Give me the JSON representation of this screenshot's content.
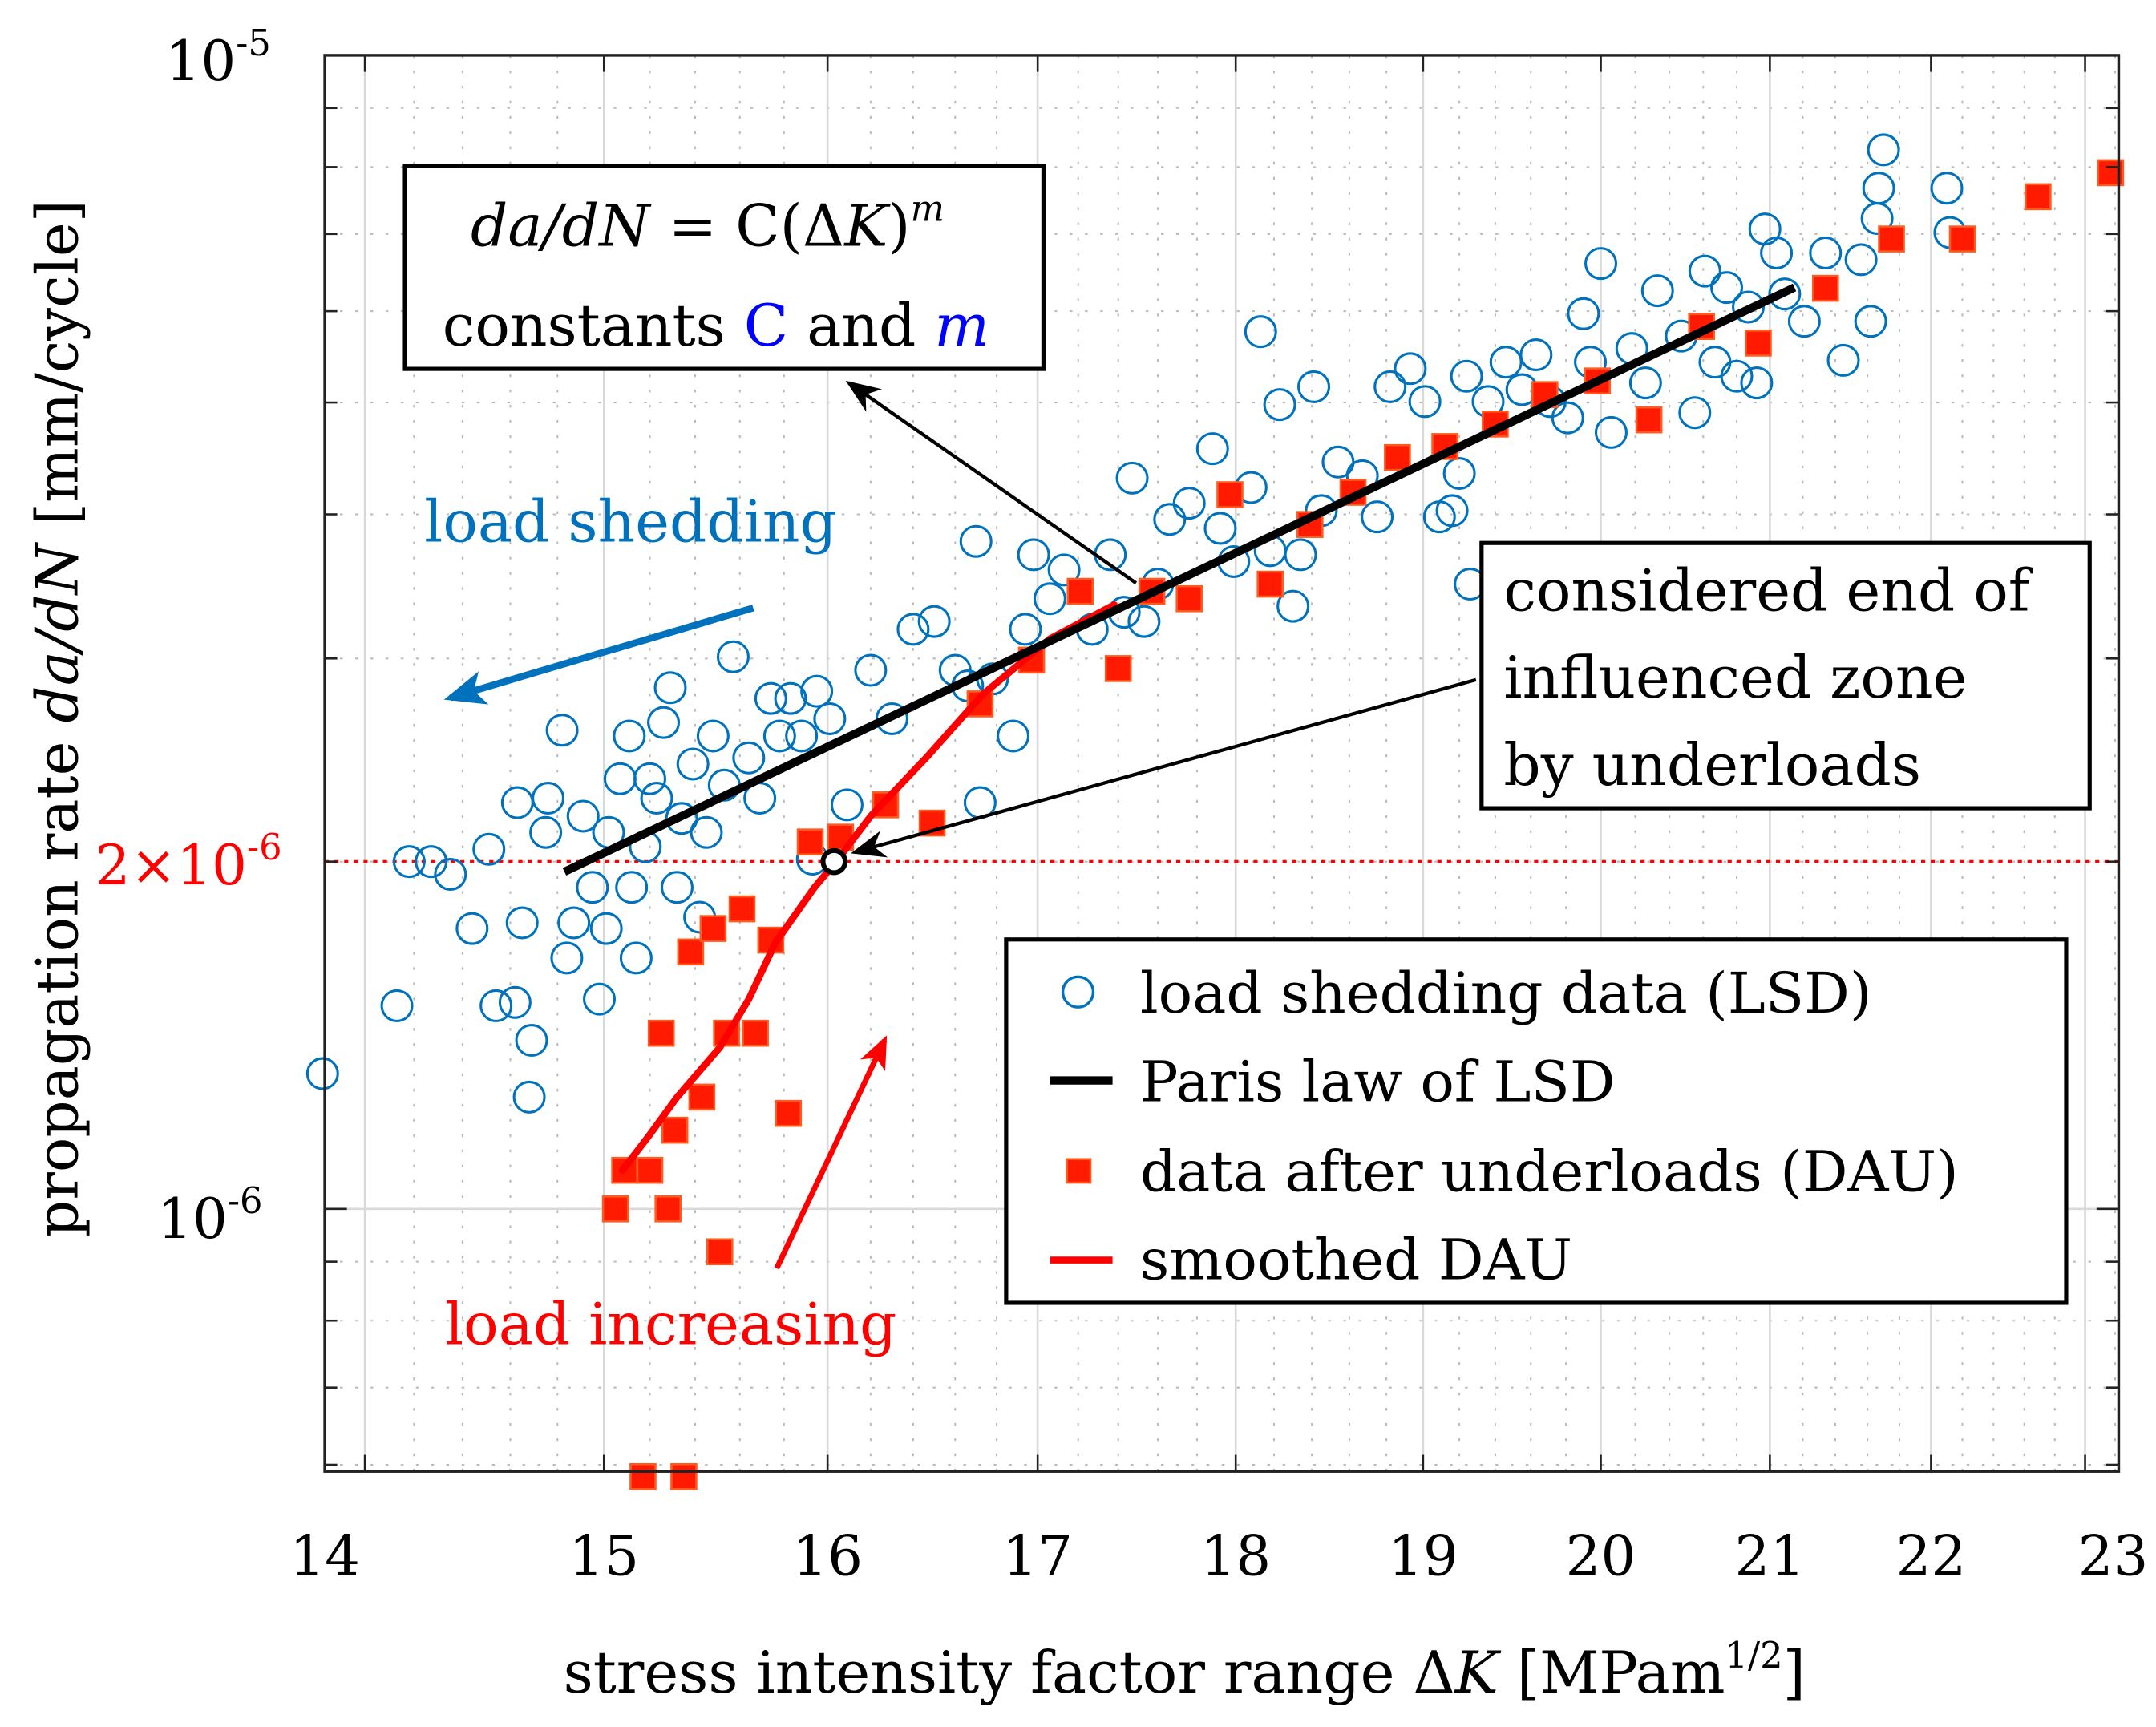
{
  "chart_data": {
    "type": "scatter",
    "xscale": "log",
    "yscale": "log",
    "xlim": [
      13.83,
      23.29
    ],
    "ylim": [
      5.84e-07,
      1e-05
    ],
    "xlabel": {
      "text": "stress intensity factor range Δ",
      "var": "K",
      "unit": " [MPam",
      "unit_exp": "1/2",
      "close": "]"
    },
    "ylabel": {
      "text": "propagation rate ",
      "var": "da/dN",
      "unit": " [mm/cycle]"
    },
    "x_ticks": [
      14,
      15,
      16,
      17,
      18,
      19,
      20,
      21,
      22,
      23
    ],
    "x_tick_labels": [
      "14",
      "15",
      "16",
      "17",
      "18",
      "19",
      "20",
      "21",
      "22",
      "23"
    ],
    "y_ticks": [
      {
        "value": 1e-05,
        "base": "10",
        "exp": "-5"
      },
      {
        "value": 1e-06,
        "base": "10",
        "exp": "-6"
      }
    ],
    "reference_line": {
      "y": 2e-06,
      "base": "2×10",
      "exp": "-6",
      "color": "#FF0000",
      "style": "dotted"
    },
    "grid": true,
    "colors": {
      "lsd": "#0072BD",
      "paris": "#000000",
      "dau": "#FF1A00",
      "dau_edge": "#FF5A1F",
      "smoothed": "#FF0000"
    },
    "series": [
      {
        "name": "load shedding data (LSD)",
        "marker": "open-circle",
        "points": [
          [
            13.83,
            1.31e-06
          ],
          [
            14.13,
            1.5e-06
          ],
          [
            14.18,
            2e-06
          ],
          [
            14.27,
            2e-06
          ],
          [
            14.35,
            1.95e-06
          ],
          [
            14.44,
            1.75e-06
          ],
          [
            14.51,
            2.05e-06
          ],
          [
            14.54,
            1.5e-06
          ],
          [
            14.63,
            2.25e-06
          ],
          [
            14.65,
            1.77e-06
          ],
          [
            14.69,
            1.4e-06
          ],
          [
            14.75,
            2.12e-06
          ],
          [
            14.76,
            2.27e-06
          ],
          [
            14.82,
            2.6e-06
          ],
          [
            14.84,
            1.65e-06
          ],
          [
            14.68,
            1.25e-06
          ],
          [
            14.62,
            1.51e-06
          ],
          [
            14.87,
            1.77e-06
          ],
          [
            14.91,
            2.19e-06
          ],
          [
            14.95,
            1.9e-06
          ],
          [
            14.98,
            1.52e-06
          ],
          [
            15.02,
            2.12e-06
          ],
          [
            15.01,
            1.75e-06
          ],
          [
            15.07,
            2.36e-06
          ],
          [
            15.11,
            2.57e-06
          ],
          [
            15.12,
            1.9e-06
          ],
          [
            15.14,
            1.65e-06
          ],
          [
            15.18,
            2.06e-06
          ],
          [
            15.2,
            2.36e-06
          ],
          [
            15.23,
            2.27e-06
          ],
          [
            15.26,
            2.64e-06
          ],
          [
            15.29,
            2.83e-06
          ],
          [
            15.32,
            1.9e-06
          ],
          [
            15.34,
            2.18e-06
          ],
          [
            15.39,
            2.43e-06
          ],
          [
            15.42,
            1.79e-06
          ],
          [
            15.45,
            2.12e-06
          ],
          [
            15.48,
            2.57e-06
          ],
          [
            15.53,
            2.33e-06
          ],
          [
            15.57,
            3.01e-06
          ],
          [
            15.64,
            2.46e-06
          ],
          [
            15.69,
            2.27e-06
          ],
          [
            15.74,
            2.77e-06
          ],
          [
            15.78,
            2.57e-06
          ],
          [
            15.83,
            2.77e-06
          ],
          [
            15.88,
            2.57e-06
          ],
          [
            15.95,
            2.81e-06
          ],
          [
            16.01,
            2.66e-06
          ],
          [
            16.09,
            2.24e-06
          ],
          [
            15.93,
            2.01e-06
          ],
          [
            16.2,
            2.93e-06
          ],
          [
            16.3,
            2.66e-06
          ],
          [
            16.4,
            3.18e-06
          ],
          [
            16.5,
            3.23e-06
          ],
          [
            16.6,
            2.93e-06
          ],
          [
            16.66,
            2.84e-06
          ],
          [
            16.72,
            2.25e-06
          ],
          [
            16.78,
            2.88e-06
          ],
          [
            16.88,
            2.57e-06
          ],
          [
            16.94,
            3.18e-06
          ],
          [
            16.7,
            3.79e-06
          ],
          [
            16.98,
            3.69e-06
          ],
          [
            17.06,
            3.38e-06
          ],
          [
            17.13,
            3.58e-06
          ],
          [
            17.27,
            3.18e-06
          ],
          [
            17.36,
            3.69e-06
          ],
          [
            17.43,
            3.29e-06
          ],
          [
            17.47,
            4.3e-06
          ],
          [
            17.53,
            3.23e-06
          ],
          [
            17.6,
            3.48e-06
          ],
          [
            17.66,
            3.96e-06
          ],
          [
            17.76,
            4.09e-06
          ],
          [
            17.88,
            4.56e-06
          ],
          [
            17.92,
            3.89e-06
          ],
          [
            17.99,
            3.64e-06
          ],
          [
            18.08,
            4.22e-06
          ],
          [
            18.13,
            5.76e-06
          ],
          [
            18.18,
            3.72e-06
          ],
          [
            18.23,
            4.98e-06
          ],
          [
            18.3,
            3.33e-06
          ],
          [
            18.34,
            3.69e-06
          ],
          [
            18.41,
            5.16e-06
          ],
          [
            18.45,
            4.03e-06
          ],
          [
            18.54,
            4.44e-06
          ],
          [
            18.67,
            4.32e-06
          ],
          [
            18.75,
            3.98e-06
          ],
          [
            18.82,
            5.16e-06
          ],
          [
            18.93,
            5.35e-06
          ],
          [
            19.01,
            5.01e-06
          ],
          [
            19.09,
            3.98e-06
          ],
          [
            19.16,
            4.03e-06
          ],
          [
            19.2,
            4.34e-06
          ],
          [
            19.26,
            3.48e-06
          ],
          [
            19.24,
            5.27e-06
          ],
          [
            19.36,
            5.01e-06
          ],
          [
            19.46,
            5.42e-06
          ],
          [
            19.55,
            5.13e-06
          ],
          [
            19.63,
            5.5e-06
          ],
          [
            19.71,
            5.01e-06
          ],
          [
            19.81,
            4.85e-06
          ],
          [
            19.9,
            5.97e-06
          ],
          [
            19.94,
            5.42e-06
          ],
          [
            20.0,
            6.6e-06
          ],
          [
            20.06,
            4.71e-06
          ],
          [
            20.18,
            5.57e-06
          ],
          [
            20.26,
            5.2e-06
          ],
          [
            20.33,
            6.25e-06
          ],
          [
            20.47,
            5.71e-06
          ],
          [
            20.55,
            4.9e-06
          ],
          [
            20.61,
            6.5e-06
          ],
          [
            20.67,
            5.42e-06
          ],
          [
            20.74,
            6.29e-06
          ],
          [
            20.8,
            5.27e-06
          ],
          [
            20.87,
            6.05e-06
          ],
          [
            20.92,
            5.2e-06
          ],
          [
            20.97,
            7.07e-06
          ],
          [
            21.04,
            6.74e-06
          ],
          [
            21.09,
            6.21e-06
          ],
          [
            21.21,
            5.88e-06
          ],
          [
            21.34,
            6.74e-06
          ],
          [
            21.45,
            5.44e-06
          ],
          [
            21.56,
            6.65e-06
          ],
          [
            21.62,
            5.88e-06
          ],
          [
            21.67,
            7.67e-06
          ],
          [
            21.7,
            8.28e-06
          ],
          [
            21.66,
            7.22e-06
          ],
          [
            22.1,
            7.67e-06
          ],
          [
            22.12,
            7.02e-06
          ]
        ]
      },
      {
        "name": "Paris law of LSD",
        "type": "line",
        "points": [
          [
            14.83,
            1.96e-06
          ],
          [
            21.15,
            6.29e-06
          ]
        ]
      },
      {
        "name": "data after underloads (DAU)",
        "marker": "filled-square",
        "points": [
          [
            15.05,
            1e-06
          ],
          [
            15.09,
            1.08e-06
          ],
          [
            15.2,
            1.08e-06
          ],
          [
            15.28,
            1e-06
          ],
          [
            15.17,
            5.86e-07
          ],
          [
            15.35,
            5.86e-07
          ],
          [
            15.31,
            1.17e-06
          ],
          [
            15.43,
            1.25e-06
          ],
          [
            15.51,
            9.18e-07
          ],
          [
            15.25,
            1.42e-06
          ],
          [
            15.54,
            1.42e-06
          ],
          [
            15.67,
            1.42e-06
          ],
          [
            15.38,
            1.67e-06
          ],
          [
            15.48,
            1.75e-06
          ],
          [
            15.61,
            1.82e-06
          ],
          [
            15.74,
            1.71e-06
          ],
          [
            15.82,
            1.21e-06
          ],
          [
            15.92,
            2.08e-06
          ],
          [
            16.06,
            2.1e-06
          ],
          [
            16.27,
            2.24e-06
          ],
          [
            16.49,
            2.16e-06
          ],
          [
            16.72,
            2.74e-06
          ],
          [
            16.97,
            2.99e-06
          ],
          [
            17.21,
            3.43e-06
          ],
          [
            17.4,
            2.94e-06
          ],
          [
            17.57,
            3.43e-06
          ],
          [
            17.76,
            3.38e-06
          ],
          [
            17.97,
            4.16e-06
          ],
          [
            18.18,
            3.48e-06
          ],
          [
            18.39,
            3.92e-06
          ],
          [
            18.62,
            4.18e-06
          ],
          [
            18.86,
            4.48e-06
          ],
          [
            19.12,
            4.58e-06
          ],
          [
            19.4,
            4.79e-06
          ],
          [
            19.68,
            5.08e-06
          ],
          [
            19.98,
            5.22e-06
          ],
          [
            20.28,
            4.83e-06
          ],
          [
            20.59,
            5.82e-06
          ],
          [
            20.93,
            5.63e-06
          ],
          [
            21.34,
            6.28e-06
          ],
          [
            21.75,
            6.93e-06
          ],
          [
            22.2,
            6.93e-06
          ],
          [
            22.69,
            7.54e-06
          ],
          [
            23.17,
            7.91e-06
          ]
        ]
      },
      {
        "name": "smoothed DAU",
        "type": "line",
        "points": [
          [
            15.08,
            1.08e-06
          ],
          [
            15.2,
            1.16e-06
          ],
          [
            15.32,
            1.25e-06
          ],
          [
            15.51,
            1.38e-06
          ],
          [
            15.64,
            1.52e-06
          ],
          [
            15.76,
            1.7e-06
          ],
          [
            15.94,
            1.9e-06
          ],
          [
            16.04,
            2e-06
          ],
          [
            16.2,
            2.19e-06
          ],
          [
            16.47,
            2.47e-06
          ],
          [
            16.73,
            2.79e-06
          ],
          [
            17.06,
            3.12e-06
          ],
          [
            17.38,
            3.34e-06
          ]
        ]
      }
    ],
    "end_marker": {
      "x": 16.03,
      "y": 2e-06
    },
    "legend": {
      "position": "lower-right",
      "entries": [
        "load shedding data (LSD)",
        "Paris law of LSD",
        "data after underloads (DAU)",
        "smoothed DAU"
      ]
    },
    "annotations": {
      "formula": {
        "lhs": "da/dN",
        "eq": " = C(Δ",
        "k": "K",
        "close": ")",
        "exp": "m",
        "line2_a": "constants ",
        "line2_c": "C",
        "line2_b": " and ",
        "line2_m": "m"
      },
      "end_zone": [
        "considered end of",
        "influenced zone",
        "by underloads"
      ],
      "load_shedding": "load shedding",
      "load_increasing": "load increasing"
    }
  }
}
